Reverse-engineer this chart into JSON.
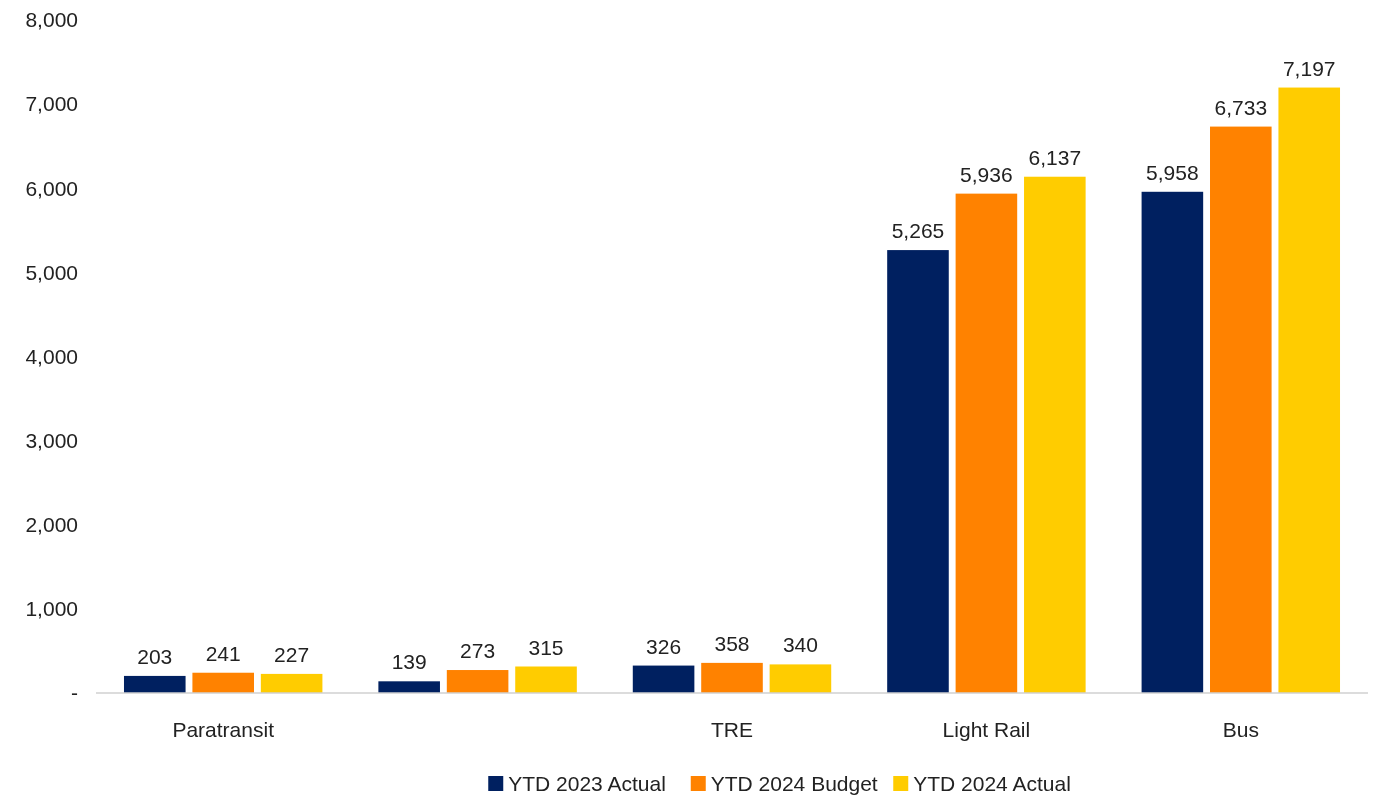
{
  "chart_data": {
    "type": "bar",
    "categories": [
      "Paratransit",
      null,
      "TRE",
      "Light Rail",
      "Bus"
    ],
    "series": [
      {
        "name": "YTD 2023 Actual",
        "color": "#002060",
        "values": [
          203,
          139,
          326,
          5265,
          5958
        ],
        "value_labels": [
          "203",
          "139",
          "326",
          "5,265",
          "5,958"
        ]
      },
      {
        "name": "YTD 2024 Budget",
        "color": "#ff8200",
        "values": [
          241,
          273,
          358,
          5936,
          6733
        ],
        "value_labels": [
          "241",
          "273",
          "358",
          "5,936",
          "6,733"
        ]
      },
      {
        "name": "YTD 2024 Actual",
        "color": "#ffcc00",
        "values": [
          227,
          315,
          340,
          6137,
          7197
        ],
        "value_labels": [
          "227",
          "315",
          "340",
          "6,137",
          "7,197"
        ]
      }
    ],
    "ylim": [
      0,
      8000
    ],
    "yticks": [
      {
        "value": 0,
        "label": "-"
      },
      {
        "value": 1000,
        "label": "1,000"
      },
      {
        "value": 2000,
        "label": "2,000"
      },
      {
        "value": 3000,
        "label": "3,000"
      },
      {
        "value": 4000,
        "label": "4,000"
      },
      {
        "value": 5000,
        "label": "5,000"
      },
      {
        "value": 6000,
        "label": "6,000"
      },
      {
        "value": 7000,
        "label": "7,000"
      },
      {
        "value": 8000,
        "label": "8,000"
      }
    ],
    "grid": false,
    "legend": "bottom"
  }
}
